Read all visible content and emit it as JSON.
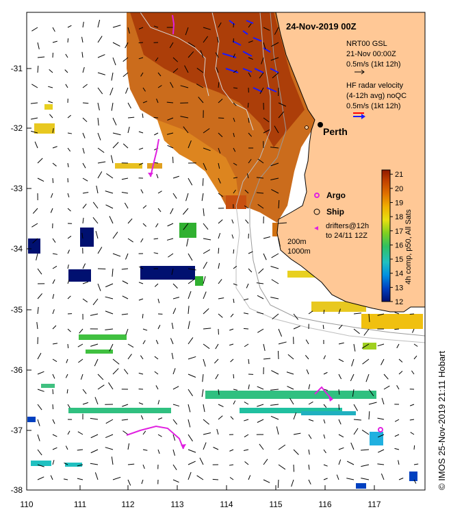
{
  "title": "24-Nov-2019 00Z",
  "city": "Perth",
  "credit": "© IMOS 25-Nov-2019 21:11 Hobart",
  "axes": {
    "x_ticks": [
      "110",
      "111",
      "112",
      "113",
      "114",
      "115",
      "116",
      "117"
    ],
    "y_ticks": [
      "-31",
      "-32",
      "-33",
      "-34",
      "-35",
      "-36",
      "-37",
      "-38"
    ],
    "lon_range": [
      110,
      117.9
    ],
    "lat_range": [
      -38,
      -30.2
    ]
  },
  "legend": {
    "gsl_line1": "NRT00 GSL",
    "gsl_line2": "21-Nov 00:00Z",
    "gsl_line3": "0.5m/s (1kt 12h)",
    "radar_line1": "HF radar velocity",
    "radar_line2": "(4-12h avg) noQC",
    "radar_line3": "0.5m/s (1kt 12h)",
    "argo_label": "Argo",
    "ship_label": "Ship",
    "drifters_line1": "drifters@12h",
    "drifters_line2": "to 24/11 12Z",
    "isobath_200": "200m",
    "isobath_1000": "1000m"
  },
  "colorbar": {
    "label": "4h comp, p50, All Sats",
    "ticks": [
      "12",
      "13",
      "14",
      "15",
      "16",
      "17",
      "18",
      "19",
      "20",
      "21"
    ],
    "min": 12,
    "max": 21.3
  },
  "colors": {
    "land": "#ffc896",
    "ocean_missing": "#ffffff",
    "argo": "#e020e0",
    "drifter": "#e020e0",
    "radar_arrow": "#1a1aff",
    "radar_red": "#ff0000"
  },
  "city_location": {
    "lon": 115.86,
    "lat": -31.95
  },
  "argo_floats": [
    {
      "lon": 117.06,
      "lat": -36.98
    }
  ]
}
